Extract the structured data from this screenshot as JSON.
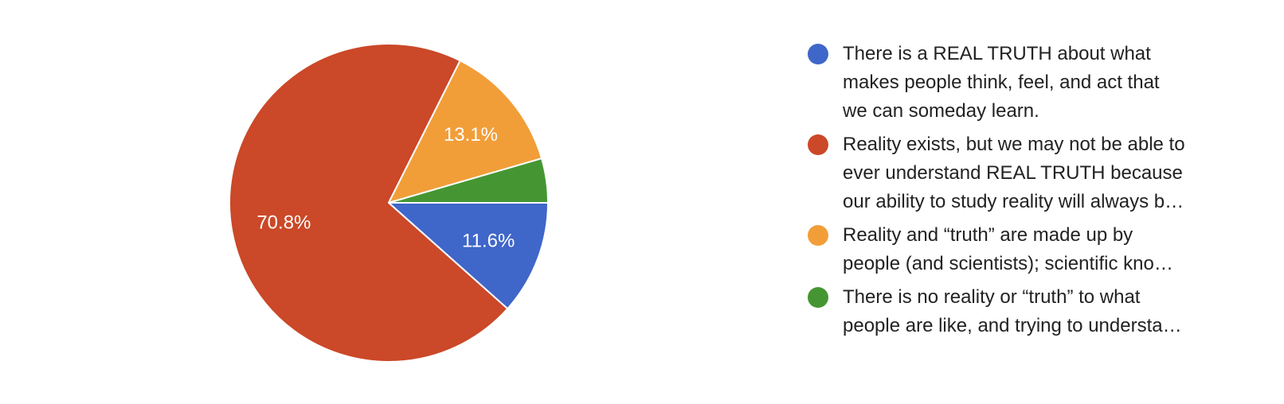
{
  "chart_data": {
    "type": "pie",
    "title": "",
    "slices": [
      {
        "label": "There is a REAL TRUTH about what makes people think, feel, and act that we can someday learn.",
        "legend_lines": [
          "There is a REAL TRUTH about what",
          "makes people think, feel, and act that",
          "we can someday learn."
        ],
        "value": 11.6,
        "value_label": "11.6%",
        "color": "#3f66c9"
      },
      {
        "label": "Reality exists, but we may not be able to ever understand REAL TRUTH because our ability to study reality will always b…",
        "legend_lines": [
          "Reality exists, but we may not be able to",
          "ever understand REAL TRUTH because",
          "our ability to study reality will always b…"
        ],
        "value": 70.8,
        "value_label": "70.8%",
        "color": "#cb4828"
      },
      {
        "label": "Reality and “truth” are made up by people (and scientists); scientific kno…",
        "legend_lines": [
          "Reality and “truth” are made up by",
          "people (and scientists); scientific kno…"
        ],
        "value": 13.1,
        "value_label": "13.1%",
        "color": "#f19e39"
      },
      {
        "label": "There is no reality or “truth” to what people are like, and trying to understa…",
        "legend_lines": [
          "There is no reality or “truth” to what",
          "people are like, and trying to understa…"
        ],
        "value": 4.5,
        "value_label": "",
        "color": "#459632"
      }
    ],
    "legend_position": "right"
  }
}
